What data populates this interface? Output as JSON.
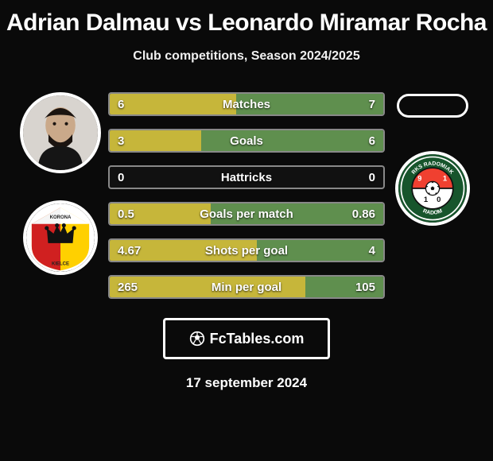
{
  "title": "Adrian Dalmau vs Leonardo Miramar Rocha",
  "subtitle": "Club competitions, Season 2024/2025",
  "date": "17 september 2024",
  "brand": "FcTables.com",
  "colors": {
    "left_fill": "#c6b63a",
    "right_fill": "#5f8f4e",
    "bar_border": "rgba(255,255,255,0.5)",
    "background": "#0a0a0a"
  },
  "left": {
    "player_name": "Adrian Dalmau",
    "club_name": "Korona Kielce",
    "club_badge_colors": {
      "top": "#ffffff",
      "left": "#d02020",
      "right": "#ffd000",
      "crown": "#111111"
    }
  },
  "right": {
    "player_name": "Leonardo Miramar Rocha",
    "club_name": "Radomiak Radom",
    "club_badge_colors": {
      "ring": "#17552c",
      "inner_top": "#f04030",
      "inner_bottom": "#ffffff",
      "ball": "#111111",
      "text": "#ffffff"
    }
  },
  "stats": [
    {
      "label": "Matches",
      "left_raw": 6,
      "right_raw": 7,
      "left_text": "6",
      "right_text": "7",
      "left_pct": 46.2,
      "right_pct": 53.8
    },
    {
      "label": "Goals",
      "left_raw": 3,
      "right_raw": 6,
      "left_text": "3",
      "right_text": "6",
      "left_pct": 33.3,
      "right_pct": 66.7
    },
    {
      "label": "Hattricks",
      "left_raw": 0,
      "right_raw": 0,
      "left_text": "0",
      "right_text": "0",
      "left_pct": 0,
      "right_pct": 0
    },
    {
      "label": "Goals per match",
      "left_raw": 0.5,
      "right_raw": 0.86,
      "left_text": "0.5",
      "right_text": "0.86",
      "left_pct": 36.8,
      "right_pct": 63.2
    },
    {
      "label": "Shots per goal",
      "left_raw": 4.67,
      "right_raw": 4,
      "left_text": "4.67",
      "right_text": "4",
      "left_pct": 53.9,
      "right_pct": 46.1
    },
    {
      "label": "Min per goal",
      "left_raw": 265,
      "right_raw": 105,
      "left_text": "265",
      "right_text": "105",
      "left_pct": 71.6,
      "right_pct": 28.4
    }
  ]
}
